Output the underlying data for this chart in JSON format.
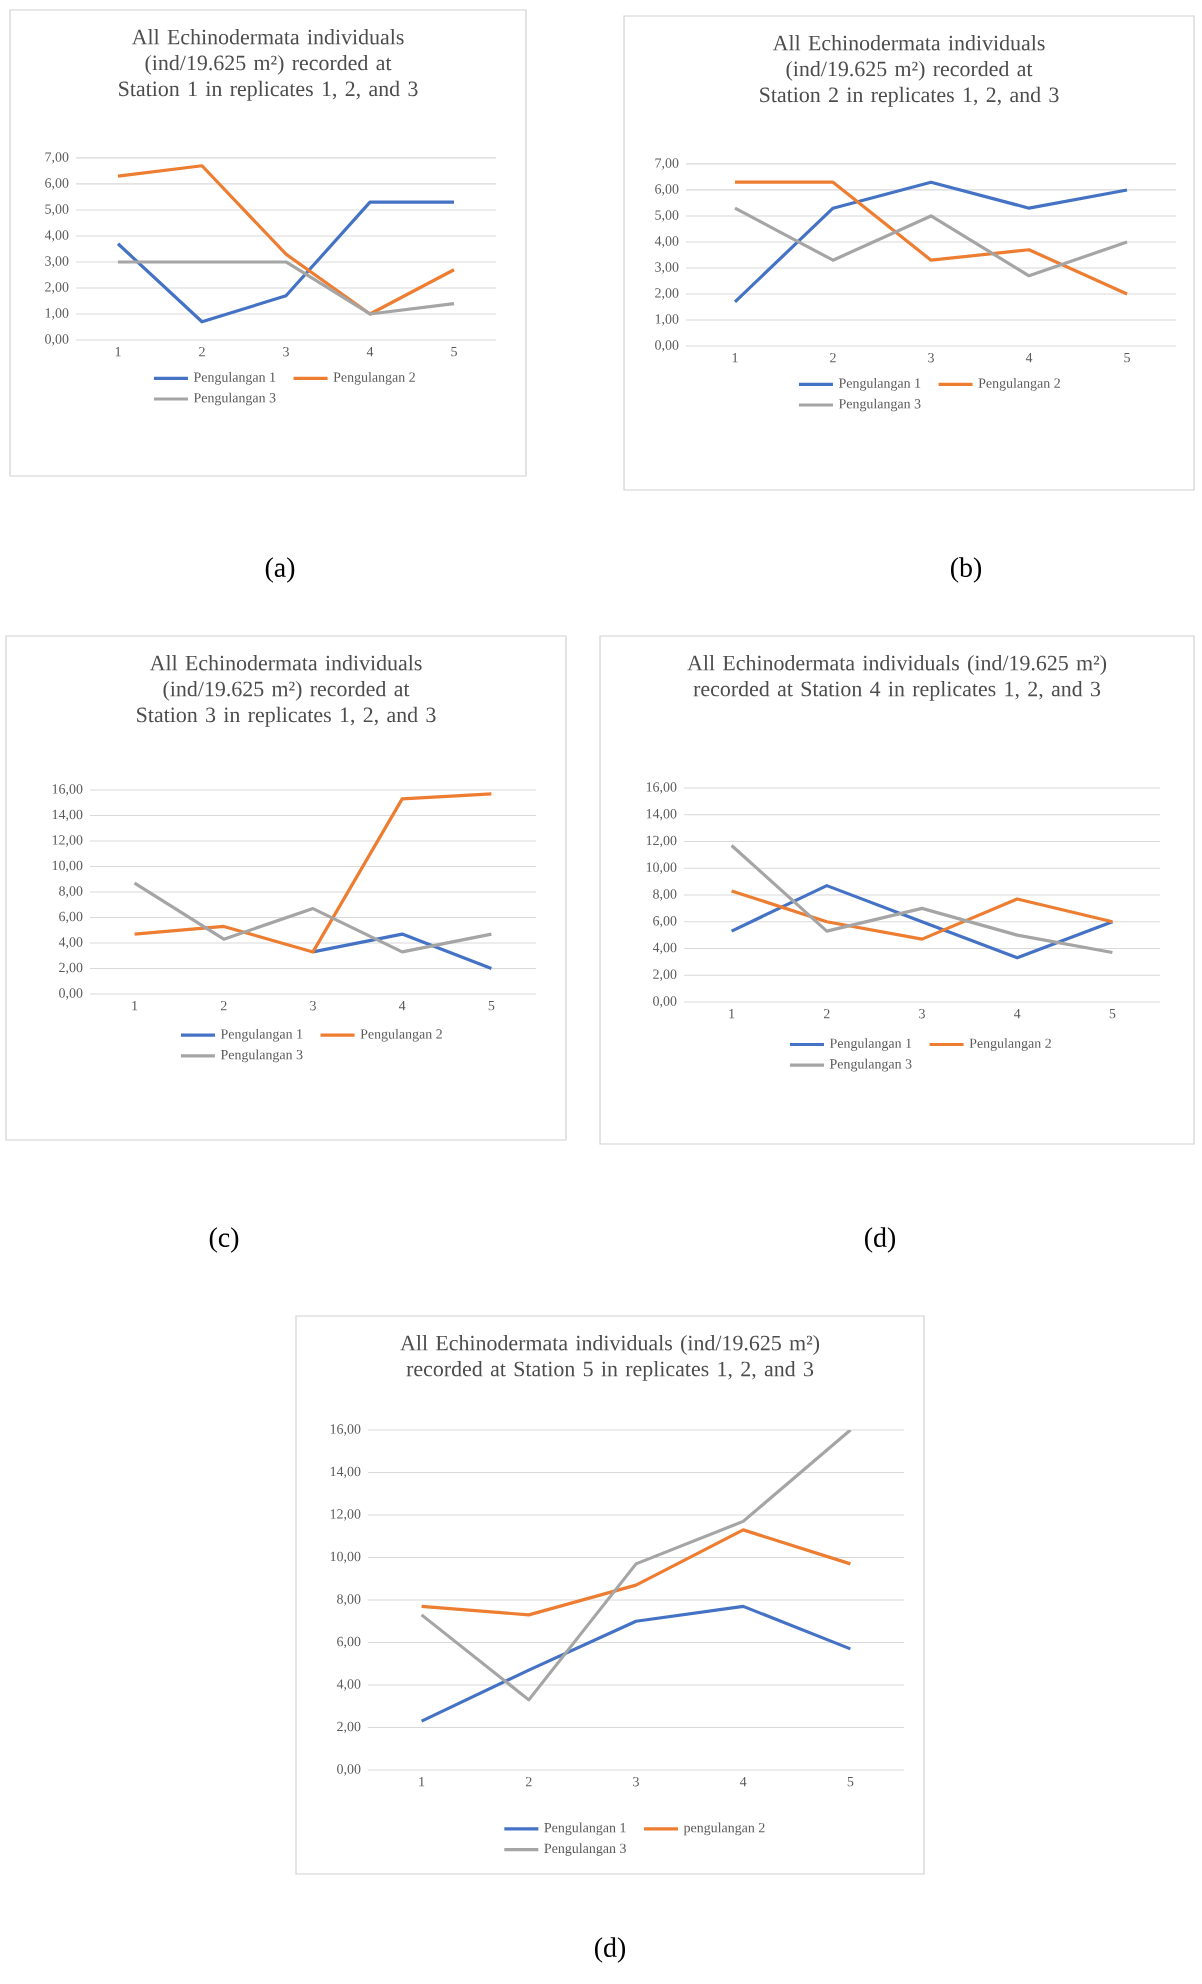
{
  "chart_data": [
    {
      "type": "line",
      "title": "All Echinodermata individuals (ind/19.625 m²) recorded at Station 1 in replicates 1, 2, and 3",
      "categories": [
        "1",
        "2",
        "3",
        "4",
        "5"
      ],
      "series": [
        {
          "name": "Pengulangan 1",
          "color": "#4472c4",
          "values": [
            3.7,
            0.7,
            1.7,
            5.3,
            5.3
          ]
        },
        {
          "name": "Pengulangan 2",
          "color": "#ed7d31",
          "values": [
            6.3,
            6.7,
            3.3,
            1.0,
            2.7
          ]
        },
        {
          "name": "Pengulangan 3",
          "color": "#a5a5a5",
          "values": [
            3.0,
            3.0,
            3.0,
            1.0,
            1.4
          ]
        }
      ],
      "ylim": [
        0,
        7
      ],
      "yticks": [
        {
          "value": 0,
          "label": "0,00"
        },
        {
          "value": 1,
          "label": "1,00"
        },
        {
          "value": 2,
          "label": "2,00"
        },
        {
          "value": 3,
          "label": "3,00"
        },
        {
          "value": 4,
          "label": "4,00"
        },
        {
          "value": 5,
          "label": "5,00"
        },
        {
          "value": 6,
          "label": "6,00"
        },
        {
          "value": 7,
          "label": "7,00"
        }
      ],
      "grid": "y",
      "legend": "bottom",
      "annotations": [
        "(a)"
      ]
    },
    {
      "type": "line",
      "title": "All Echinodermata individuals (ind/19.625 m²) recorded at Station 2 in replicates 1, 2, and 3",
      "categories": [
        "1",
        "2",
        "3",
        "4",
        "5"
      ],
      "series": [
        {
          "name": "Pengulangan 1",
          "color": "#4472c4",
          "values": [
            1.7,
            5.3,
            6.3,
            5.3,
            6.0
          ]
        },
        {
          "name": "Pengulangan 2",
          "color": "#ed7d31",
          "values": [
            6.3,
            6.3,
            3.3,
            3.7,
            2.0
          ]
        },
        {
          "name": "Pengulangan 3",
          "color": "#a5a5a5",
          "values": [
            5.3,
            3.3,
            5.0,
            2.7,
            4.0
          ]
        }
      ],
      "ylim": [
        0,
        7
      ],
      "yticks": [
        {
          "value": 0,
          "label": "0,00"
        },
        {
          "value": 1,
          "label": "1,00"
        },
        {
          "value": 2,
          "label": "2,00"
        },
        {
          "value": 3,
          "label": "3,00"
        },
        {
          "value": 4,
          "label": "4,00"
        },
        {
          "value": 5,
          "label": "5,00"
        },
        {
          "value": 6,
          "label": "6,00"
        },
        {
          "value": 7,
          "label": "7,00"
        }
      ],
      "grid": "y",
      "legend": "bottom",
      "annotations": [
        "(b)"
      ]
    },
    {
      "type": "line",
      "title": "All Echinodermata individuals (ind/19.625 m²) recorded at Station 3 in replicates 1, 2, and 3",
      "categories": [
        "1",
        "2",
        "3",
        "4",
        "5"
      ],
      "series": [
        {
          "name": "Pengulangan 1",
          "color": "#4472c4",
          "values": [
            null,
            null,
            3.3,
            4.7,
            2.0
          ]
        },
        {
          "name": "Pengulangan 2",
          "color": "#ed7d31",
          "values": [
            4.7,
            5.3,
            3.3,
            15.3,
            15.7
          ]
        },
        {
          "name": "Pengulangan 3",
          "color": "#a5a5a5",
          "values": [
            8.7,
            4.3,
            6.7,
            3.3,
            4.7
          ]
        }
      ],
      "ylim": [
        0,
        16
      ],
      "yticks": [
        {
          "value": 0,
          "label": "0,00"
        },
        {
          "value": 2,
          "label": "2,00"
        },
        {
          "value": 4,
          "label": "4,00"
        },
        {
          "value": 6,
          "label": "6,00"
        },
        {
          "value": 8,
          "label": "8,00"
        },
        {
          "value": 10,
          "label": "10,00"
        },
        {
          "value": 12,
          "label": "12,00"
        },
        {
          "value": 14,
          "label": "14,00"
        },
        {
          "value": 16,
          "label": "16,00"
        }
      ],
      "grid": "y",
      "legend": "bottom",
      "annotations": [
        "(c)"
      ]
    },
    {
      "type": "line",
      "title": "All Echinodermata individuals (ind/19.625 m²) recorded at Station 4 in replicates 1, 2, and 3",
      "categories": [
        "1",
        "2",
        "3",
        "4",
        "5"
      ],
      "series": [
        {
          "name": "Pengulangan 1",
          "color": "#4472c4",
          "values": [
            5.3,
            8.7,
            6.0,
            3.3,
            6.0
          ]
        },
        {
          "name": "Pengulangan 2",
          "color": "#ed7d31",
          "values": [
            8.3,
            6.0,
            4.7,
            7.7,
            6.0
          ]
        },
        {
          "name": "Pengulangan 3",
          "color": "#a5a5a5",
          "values": [
            11.7,
            5.3,
            7.0,
            5.0,
            3.7
          ]
        }
      ],
      "ylim": [
        0,
        16
      ],
      "yticks": [
        {
          "value": 0,
          "label": "0,00"
        },
        {
          "value": 2,
          "label": "2,00"
        },
        {
          "value": 4,
          "label": "4,00"
        },
        {
          "value": 6,
          "label": "6,00"
        },
        {
          "value": 8,
          "label": "8,00"
        },
        {
          "value": 10,
          "label": "10,00"
        },
        {
          "value": 12,
          "label": "12,00"
        },
        {
          "value": 14,
          "label": "14,00"
        },
        {
          "value": 16,
          "label": "16,00"
        }
      ],
      "grid": "y",
      "legend": "bottom",
      "annotations": [
        "(d)"
      ]
    },
    {
      "type": "line",
      "title": "All Echinodermata individuals (ind/19.625 m²) recorded at Station 5 in replicates 1, 2, and 3",
      "categories": [
        "1",
        "2",
        "3",
        "4",
        "5"
      ],
      "series": [
        {
          "name": "Pengulangan 1",
          "color": "#4472c4",
          "values": [
            2.3,
            4.7,
            7.0,
            7.7,
            5.7
          ]
        },
        {
          "name": "pengulangan 2",
          "color": "#ed7d31",
          "values": [
            7.7,
            7.3,
            8.7,
            11.3,
            9.7
          ]
        },
        {
          "name": "Pengulangan 3",
          "color": "#a5a5a5",
          "values": [
            7.3,
            3.3,
            9.7,
            11.7,
            16.0
          ]
        }
      ],
      "ylim": [
        0,
        16
      ],
      "yticks": [
        {
          "value": 0,
          "label": "0,00"
        },
        {
          "value": 2,
          "label": "2,00"
        },
        {
          "value": 4,
          "label": "4,00"
        },
        {
          "value": 6,
          "label": "6,00"
        },
        {
          "value": 8,
          "label": "8,00"
        },
        {
          "value": 10,
          "label": "10,00"
        },
        {
          "value": 12,
          "label": "12,00"
        },
        {
          "value": 14,
          "label": "14,00"
        },
        {
          "value": 16,
          "label": "16,00"
        }
      ],
      "grid": "y",
      "legend": "bottom",
      "annotations": [
        "(d)"
      ]
    }
  ]
}
